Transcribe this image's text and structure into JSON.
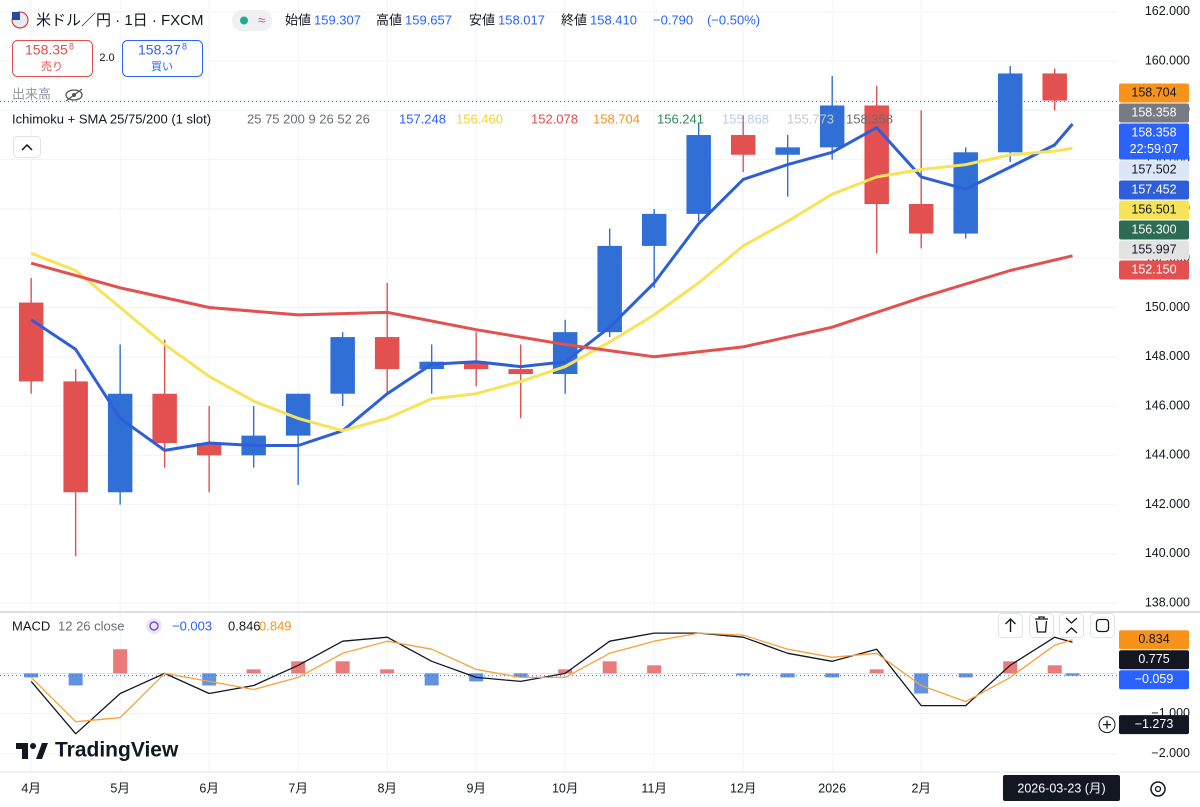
{
  "header": {
    "symbol": "米ドル／円 · 1日 · FXCM",
    "ohlc": [
      {
        "name": "始値",
        "value": 159.307,
        "label": "159.307"
      },
      {
        "name": "高値",
        "value": 159.657,
        "label": "159.657"
      },
      {
        "name": "安値",
        "value": 158.017,
        "label": "158.017"
      },
      {
        "name": "終値",
        "value": 158.41,
        "label": "158.410"
      }
    ],
    "change": {
      "value": -0.79,
      "label": "−0.790"
    },
    "change_pct": {
      "value": -0.5,
      "label": "(−0.50%)"
    },
    "sell": {
      "value": 158.358,
      "label": "158.35",
      "pipette": "8",
      "caption": "売り"
    },
    "spread": {
      "value": 2.0,
      "label": "2.0"
    },
    "buy": {
      "value": 158.378,
      "label": "158.37",
      "pipette": "8",
      "caption": "買い"
    },
    "volume": "出来高"
  },
  "legend": {
    "title": "Ichimoku + SMA 25/75/200 (1 slot)",
    "params": "25 75 200 9 26 52 26",
    "values": [
      {
        "value": 157.248,
        "label": "157.248",
        "color": "#2962ff"
      },
      {
        "value": 156.46,
        "label": "156.460",
        "color": "#f2d43a"
      },
      {
        "value": 152.078,
        "label": "152.078",
        "color": "#e5484d"
      },
      {
        "value": 158.704,
        "label": "158.704",
        "color": "#f7931a"
      },
      {
        "value": 156.241,
        "label": "156.241",
        "color": "#2e8b57"
      },
      {
        "value": 155.868,
        "label": "155.868",
        "color": "#b7cdf2"
      },
      {
        "value": 155.773,
        "label": "155.773",
        "color": "#c8c8c8"
      },
      {
        "value": 158.358,
        "label": "158.358",
        "color": "#6b6b6b"
      }
    ]
  },
  "macd_legend": {
    "title": "MACD",
    "params": "12 26 close",
    "values": [
      {
        "value": -0.003,
        "label": "−0.003",
        "color": "#2962ff"
      },
      {
        "value": 0.846,
        "label": "0.846",
        "color": "#131722"
      },
      {
        "value": 0.849,
        "label": "0.849",
        "color": "#f7931a"
      }
    ]
  },
  "footer": {
    "logo": "TradingView",
    "date": "2026-03-23 (月)"
  },
  "chart_data": [
    {
      "type": "candlestick",
      "up_color": "#2f6fd6",
      "down_color": "#e2504f",
      "x": [
        0,
        0.5,
        1,
        1.5,
        2,
        2.5,
        3,
        3.5,
        4,
        4.5,
        5,
        5.5,
        6,
        6.5,
        7,
        7.5,
        8,
        8.5,
        9,
        9.5,
        10,
        10.5,
        11,
        11.5
      ],
      "open": [
        150.2,
        147,
        142.5,
        146.5,
        144.5,
        144,
        144.8,
        146.5,
        148.8,
        147.5,
        147.8,
        147.5,
        147.3,
        149,
        152.5,
        153.8,
        157,
        156.2,
        156.5,
        158.2,
        154.2,
        153,
        156.3,
        159.5
      ],
      "high": [
        151.2,
        147.5,
        148.5,
        148.7,
        146,
        146,
        146.5,
        149,
        151,
        148.5,
        149,
        148.5,
        149.5,
        153.2,
        154,
        157.5,
        157.8,
        157,
        159.4,
        159,
        158,
        156.5,
        159.8,
        159.7
      ],
      "low": [
        146.5,
        139.9,
        142,
        143.5,
        142.5,
        143.5,
        142.8,
        146,
        146.5,
        146.5,
        146.8,
        145.5,
        146.5,
        148.8,
        150.8,
        153.5,
        155.5,
        154.5,
        156,
        152.2,
        152.4,
        152.8,
        155.9,
        158
      ],
      "close": [
        147,
        142.5,
        146.5,
        144.5,
        144,
        144.8,
        146.5,
        148.8,
        147.5,
        147.8,
        147.5,
        147.3,
        149,
        152.5,
        153.8,
        157,
        156.2,
        156.5,
        158.2,
        154.2,
        153,
        156.3,
        159.5,
        158.4
      ],
      "series": [
        {
          "color": "#2f5fd8",
          "x": [
            0,
            0.5,
            1,
            1.5,
            2,
            2.5,
            3,
            3.5,
            4,
            4.5,
            5,
            5.5,
            6,
            6.5,
            7,
            7.5,
            8,
            8.5,
            9,
            9.5,
            10,
            10.5,
            11,
            11.5,
            11.7
          ],
          "values": [
            149.5,
            148.3,
            145.5,
            144.2,
            144.5,
            144.4,
            144.4,
            145,
            146.5,
            147.7,
            147.8,
            147.6,
            147.8,
            149.2,
            151,
            153.4,
            155.2,
            155.8,
            156.3,
            157.3,
            155.3,
            154.8,
            155.7,
            156.6,
            157.45
          ]
        },
        {
          "color": "#f5e35a",
          "x": [
            0,
            0.5,
            1,
            1.5,
            2,
            2.5,
            3,
            3.5,
            4,
            4.5,
            5,
            5.5,
            6,
            6.5,
            7,
            7.5,
            8,
            8.5,
            9,
            9.5,
            10,
            10.5,
            11,
            11.5,
            11.7
          ],
          "values": [
            152.2,
            151.5,
            150,
            148.5,
            147.2,
            146.2,
            145.5,
            145,
            145.5,
            146.3,
            146.5,
            147,
            147.6,
            148.6,
            149.7,
            151,
            152.5,
            153.5,
            154.6,
            155.3,
            155.6,
            155.8,
            156.2,
            156.35,
            156.46
          ]
        },
        {
          "color": "#e2504f",
          "x": [
            0,
            1,
            2,
            3,
            4,
            5,
            6,
            7,
            8,
            9,
            10,
            11,
            11.7
          ],
          "values": [
            151.8,
            150.8,
            150,
            149.7,
            149.8,
            149.1,
            148.5,
            148,
            148.4,
            149.2,
            150.4,
            151.5,
            152.1
          ]
        }
      ],
      "xlim": [
        -0.35,
        12.2
      ],
      "xticks": [
        {
          "value": 0,
          "label": "4月"
        },
        {
          "value": 1,
          "label": "5月"
        },
        {
          "value": 2,
          "label": "6月"
        },
        {
          "value": 3,
          "label": "7月"
        },
        {
          "value": 4,
          "label": "8月"
        },
        {
          "value": 5,
          "label": "9月"
        },
        {
          "value": 6,
          "label": "10月"
        },
        {
          "value": 7,
          "label": "11月"
        },
        {
          "value": 8,
          "label": "12月"
        },
        {
          "value": 9,
          "label": "2026"
        },
        {
          "value": 10,
          "label": "2月"
        }
      ],
      "ylim": [
        137.6,
        162.4
      ],
      "yticks": [
        {
          "value": 138,
          "label": "138.000"
        },
        {
          "value": 140,
          "label": "140.000"
        },
        {
          "value": 142,
          "label": "142.000"
        },
        {
          "value": 144,
          "label": "144.000"
        },
        {
          "value": 146,
          "label": "146.000"
        },
        {
          "value": 148,
          "label": "148.000"
        },
        {
          "value": 150,
          "label": "150.000"
        },
        {
          "value": 152,
          "label": "152.000"
        },
        {
          "value": 154,
          "label": "154.000"
        },
        {
          "value": 156,
          "label": "156.000"
        },
        {
          "value": 158,
          "label": "158.000"
        },
        {
          "value": 160,
          "label": "160.000"
        },
        {
          "value": 162,
          "label": "162.000"
        }
      ],
      "grid": true,
      "price_labels": [
        {
          "value": 158.704,
          "label": "158.704",
          "color": "#f7931a",
          "text_color": "#131722"
        },
        {
          "value": 158.358,
          "label": "158.358",
          "color": "#787b86",
          "text_color": "#ffffff"
        },
        {
          "value": 158.358,
          "label": "158.358",
          "color": "#2962ff",
          "text_color": "#ffffff",
          "countdown": "22:59:07"
        },
        {
          "value": 157.502,
          "label": "157.502",
          "color": "#dbe6f8",
          "text_color": "#131722"
        },
        {
          "value": 157.452,
          "label": "157.452",
          "color": "#2f5fd8",
          "text_color": "#ffffff"
        },
        {
          "value": 156.501,
          "label": "156.501",
          "color": "#f5e35a",
          "text_color": "#131722"
        },
        {
          "value": 156.3,
          "label": "156.300",
          "color": "#2e6b55",
          "text_color": "#ffffff"
        },
        {
          "value": 155.997,
          "label": "155.997",
          "color": "#e3e3e3",
          "text_color": "#131722"
        },
        {
          "value": 152.15,
          "label": "152.150",
          "color": "#e2504f",
          "text_color": "#ffffff"
        }
      ]
    },
    {
      "type": "macd",
      "x": [
        0,
        0.5,
        1,
        1.5,
        2,
        2.5,
        3,
        3.5,
        4,
        4.5,
        5,
        5.5,
        6,
        6.5,
        7,
        7.5,
        8,
        8.5,
        9,
        9.5,
        10,
        10.5,
        11,
        11.5,
        11.7
      ],
      "series": [
        {
          "color": "#131722",
          "values": [
            -0.2,
            -1.5,
            -0.5,
            0.0,
            -0.5,
            -0.3,
            0.2,
            0.8,
            0.9,
            0.3,
            -0.1,
            -0.2,
            0.0,
            0.8,
            1.0,
            1.0,
            0.9,
            0.5,
            0.3,
            0.6,
            -0.8,
            -0.8,
            0.2,
            0.9,
            0.775
          ]
        },
        {
          "color": "#f7a23a",
          "values": [
            -0.1,
            -1.2,
            -1.1,
            0.0,
            -0.2,
            -0.4,
            -0.1,
            0.5,
            0.8,
            0.6,
            0.1,
            -0.1,
            -0.1,
            0.5,
            0.8,
            1.0,
            0.95,
            0.6,
            0.4,
            0.5,
            -0.3,
            -0.7,
            -0.1,
            0.7,
            0.834
          ]
        }
      ],
      "histogram": {
        "up_color": "#e2504f",
        "down_color": "#2f6fd6",
        "values": [
          -0.1,
          -0.3,
          0.6,
          0,
          -0.3,
          0.1,
          0.3,
          0.3,
          0.1,
          -0.3,
          -0.2,
          -0.1,
          0.1,
          0.3,
          0.2,
          0,
          -0.05,
          -0.1,
          -0.1,
          0.1,
          -0.5,
          -0.1,
          0.3,
          0.2,
          -0.059
        ]
      },
      "ylim": [
        -2.4,
        1.5
      ],
      "yticks": [
        {
          "value": -1,
          "label": "−1.000"
        },
        {
          "value": -2,
          "label": "−2.000"
        }
      ],
      "price_labels": [
        {
          "value": 0.834,
          "label": "0.834",
          "color": "#f7931a",
          "text_color": "#131722"
        },
        {
          "value": 0.775,
          "label": "0.775",
          "color": "#131722",
          "text_color": "#ffffff"
        },
        {
          "value": -0.059,
          "label": "−0.059",
          "color": "#2962ff",
          "text_color": "#ffffff"
        },
        {
          "value": -1.273,
          "label": "−1.273",
          "color": "#131722",
          "text_color": "#ffffff"
        }
      ]
    }
  ]
}
